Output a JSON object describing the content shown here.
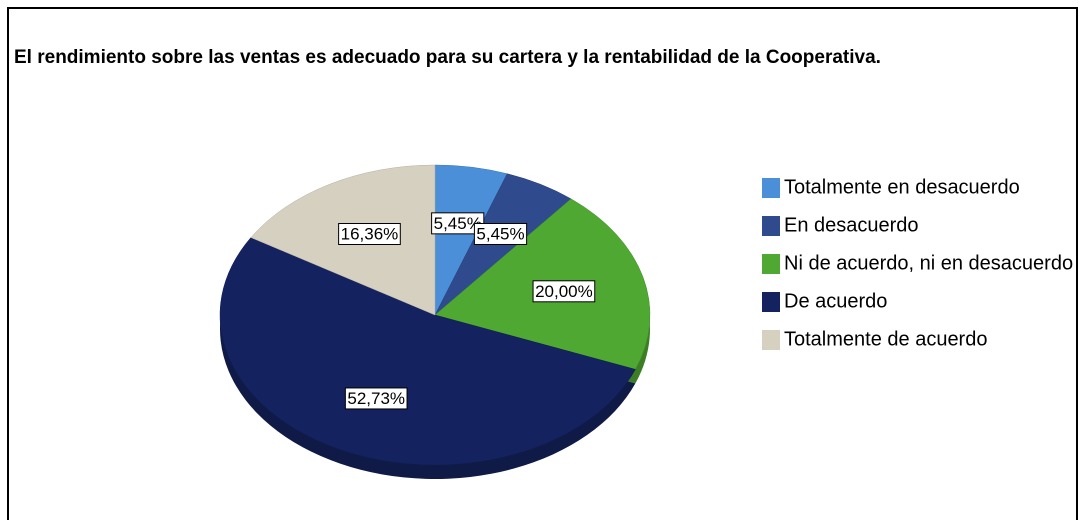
{
  "chart_data": {
    "type": "pie",
    "title": "El rendimiento sobre las ventas es adecuado para su cartera y la rentabilidad de la Cooperativa.",
    "categories": [
      "Totalmente en desacuerdo",
      "En desacuerdo",
      "Ni de acuerdo, ni en desacuerdo",
      "De acuerdo",
      "Totalmente de acuerdo"
    ],
    "values": [
      5.45,
      5.45,
      20.0,
      52.73,
      16.36
    ],
    "value_labels": [
      "5,45%",
      "5,45%",
      "20,00%",
      "52,73%",
      "16,36%"
    ],
    "colors": [
      "#4a8fd8",
      "#2f4b8e",
      "#4ea832",
      "#14225f",
      "#d6d0c0"
    ],
    "legend": "right"
  }
}
